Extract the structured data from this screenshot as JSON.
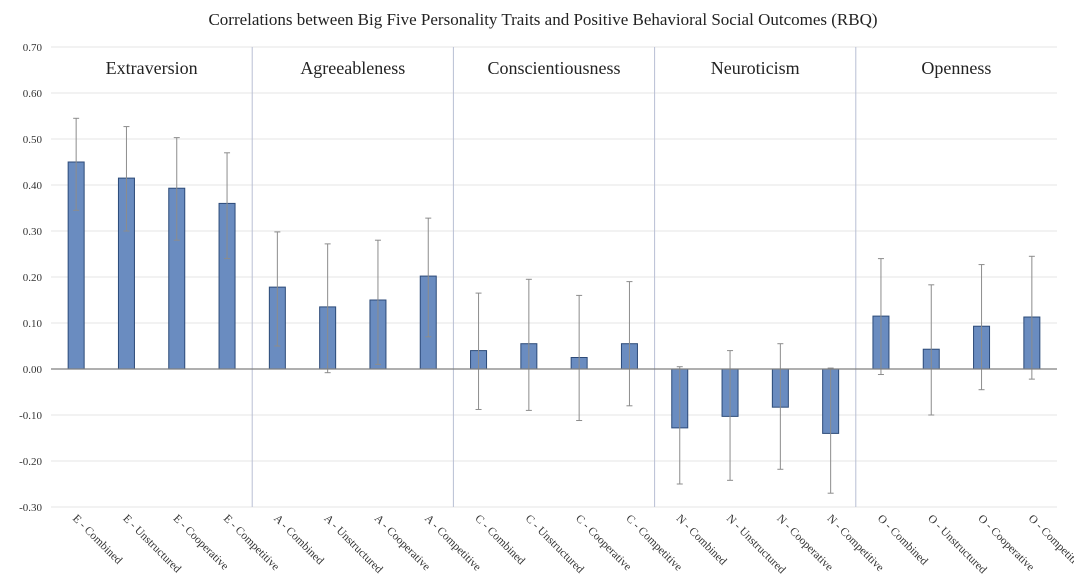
{
  "chart_data": {
    "type": "bar",
    "title": "Correlations between Big Five Personality Traits and Positive Behavioral Social Outcomes (RBQ)",
    "ylim": [
      -0.3,
      0.7
    ],
    "yticks": [
      "0.70",
      "0.60",
      "0.50",
      "0.40",
      "0.30",
      "0.20",
      "0.10",
      "0.00",
      "-0.10",
      "-0.20",
      "-0.30"
    ],
    "ytick_values": [
      0.7,
      0.6,
      0.5,
      0.4,
      0.3,
      0.2,
      0.1,
      0.0,
      -0.1,
      -0.2,
      -0.3
    ],
    "grid": true,
    "groups": [
      {
        "label": "Extraversion",
        "categories": [
          "E - Combined",
          "E - Unstructured",
          "E - Cooperative",
          "E - Competitive"
        ],
        "values": [
          0.45,
          0.415,
          0.393,
          0.36
        ],
        "error_low": [
          0.345,
          0.3,
          0.28,
          0.24
        ],
        "error_high": [
          0.545,
          0.527,
          0.503,
          0.47
        ]
      },
      {
        "label": "Agreeableness",
        "categories": [
          "A - Combined",
          "A - Unstructured",
          "A - Cooperative",
          "A - Competitive"
        ],
        "values": [
          0.178,
          0.135,
          0.15,
          0.202
        ],
        "error_low": [
          0.05,
          -0.008,
          0.01,
          0.07
        ],
        "error_high": [
          0.298,
          0.272,
          0.28,
          0.328
        ]
      },
      {
        "label": "Conscientiousness",
        "categories": [
          "C - Combined",
          "C - Unstructured",
          "C - Cooperative",
          "C - Competitive"
        ],
        "values": [
          0.04,
          0.055,
          0.025,
          0.055
        ],
        "error_low": [
          -0.088,
          -0.09,
          -0.112,
          -0.08
        ],
        "error_high": [
          0.165,
          0.195,
          0.16,
          0.19
        ]
      },
      {
        "label": "Neuroticism",
        "categories": [
          "N - Combined",
          "N - Unstructured",
          "N - Cooperative",
          "N - Competitive"
        ],
        "values": [
          -0.128,
          -0.103,
          -0.083,
          -0.14
        ],
        "error_low": [
          -0.25,
          -0.242,
          -0.218,
          -0.27
        ],
        "error_high": [
          0.005,
          0.04,
          0.055,
          0.002
        ]
      },
      {
        "label": "Openness",
        "categories": [
          "O - Combined",
          "O - Unstructured",
          "O - Cooperative",
          "O - Competitive"
        ],
        "values": [
          0.115,
          0.043,
          0.093,
          0.113
        ],
        "error_low": [
          -0.012,
          -0.1,
          -0.045,
          -0.022
        ],
        "error_high": [
          0.24,
          0.183,
          0.227,
          0.245
        ]
      }
    ],
    "colors": {
      "bar_fill": "#6a8cc0",
      "bar_edge": "#2c4a78",
      "error_bar": "#8c8c8c",
      "separator": "#b8bfd4"
    }
  }
}
